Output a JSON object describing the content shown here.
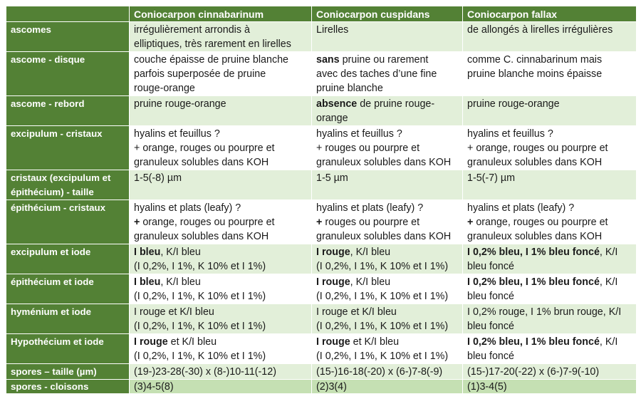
{
  "header": {
    "species": [
      "Coniocarpon cinnabarinum",
      "Coniocarpon cuspidans",
      "Coniocarpon fallax"
    ]
  },
  "rows": [
    {
      "label": "ascomes",
      "cells": [
        [
          "irrégulièrement arrondis à",
          "elliptiques, très rarement en lirelles"
        ],
        [
          "Lirelles"
        ],
        [
          "de allongés à lirelles irrégulières"
        ]
      ]
    },
    {
      "label": "ascome - disque",
      "cells": [
        [
          "couche épaisse de pruine blanche",
          "parfois superposée de pruine",
          "rouge-orange"
        ],
        [
          {
            "bold": "sans",
            "rest": " pruine ou rarement"
          },
          "avec des taches d’une fine",
          "pruine blanche"
        ],
        [
          "comme C. cinnabarinum mais",
          "pruine blanche moins épaisse"
        ]
      ]
    },
    {
      "label": "ascome - rebord",
      "cells": [
        [
          "pruine rouge-orange"
        ],
        [
          {
            "bold": "absence",
            "rest": " de pruine rouge-"
          },
          "orange"
        ],
        [
          "pruine rouge-orange"
        ]
      ]
    },
    {
      "label": "excipulum - cristaux",
      "cells": [
        [
          "hyalins et feuillus ?",
          "+ orange, rouges ou pourpre et",
          "granuleux solubles dans KOH"
        ],
        [
          "hyalins et feuillus ?",
          "+ rouges ou pourpre et",
          "granuleux solubles dans KOH"
        ],
        [
          "hyalins et feuillus ?",
          "+ orange, rouges ou pourpre et",
          "granuleux solubles dans KOH"
        ]
      ]
    },
    {
      "label": "cristaux (excipulum et épithécium) - taille",
      "cells": [
        [
          "1-5(-8) µm"
        ],
        [
          "1-5 µm"
        ],
        [
          "1-5(-7) µm"
        ]
      ]
    },
    {
      "label": "épithécium - cristaux",
      "cells": [
        [
          "hyalins et plats (leafy)  ?",
          {
            "bold": "+",
            "rest": " orange, rouges ou pourpre et"
          },
          "granuleux solubles dans KOH"
        ],
        [
          "hyalins et plats (leafy)  ?",
          {
            "bold": "+",
            "rest": " rouges ou pourpre et"
          },
          "granuleux solubles dans KOH"
        ],
        [
          "hyalins et plats (leafy) ?",
          {
            "bold": "+",
            "rest": " orange, rouges ou pourpre et"
          },
          "granuleux solubles dans KOH"
        ]
      ]
    },
    {
      "label": "excipulum et iode",
      "cells": [
        [
          {
            "bold": "I bleu",
            "rest": ", K/I bleu"
          },
          "(I 0,2%, I 1%, K 10% et I 1%)"
        ],
        [
          {
            "bold": "I rouge",
            "rest": ", K/I bleu"
          },
          "(I 0,2%, I 1%, K 10% et I 1%)"
        ],
        [
          {
            "bold": "I 0,2% bleu, I 1% bleu foncé",
            "rest": ", K/I"
          },
          "bleu foncé"
        ]
      ]
    },
    {
      "label": "épithécium et iode",
      "cells": [
        [
          {
            "bold": "I bleu",
            "rest": ", K/I bleu"
          },
          "(I 0,2%, I 1%, K 10% et I 1%)"
        ],
        [
          {
            "bold": "I rouge",
            "rest": ", K/I bleu"
          },
          "(I 0,2%, I 1%, K 10% et I 1%)"
        ],
        [
          {
            "bold": "I 0,2% bleu, I 1% bleu foncé",
            "rest": ", K/I"
          },
          "bleu foncé"
        ]
      ]
    },
    {
      "label": "hyménium et iode",
      "cells": [
        [
          "I rouge et K/I bleu",
          "(I 0,2%, I 1%, K 10% et I 1%)"
        ],
        [
          "I rouge et K/I bleu",
          "(I 0,2%, I 1%, K 10% et I 1%)"
        ],
        [
          "I 0,2% rouge, I 1% brun rouge, K/I",
          "bleu foncé"
        ]
      ]
    },
    {
      "label": "Hypothécium et iode",
      "cells": [
        [
          {
            "bold": "I rouge",
            "rest": " et K/I bleu"
          },
          "(I 0,2%, I 1%, K 10% et I 1%)"
        ],
        [
          {
            "bold": "I rouge",
            "rest": " et K/I bleu"
          },
          "(I 0,2%, I 1%, K 10% et I 1%)"
        ],
        [
          {
            "bold": "I 0,2% bleu, I 1% bleu foncé",
            "rest": ", K/I"
          },
          "bleu foncé"
        ]
      ]
    },
    {
      "label": "spores – taille (µm)",
      "cells": [
        [
          "(19-)23-28(-30) x (8-)10-11(-12)"
        ],
        [
          "(15-)16-18(-20) x (6-)7-8(-9)"
        ],
        [
          "(15-)17-20(-22) x (6-)7-9(-10)"
        ]
      ]
    },
    {
      "label": "spores - cloisons",
      "cells": [
        [
          "(3)4-5(8)"
        ],
        [
          "(2)3(4)"
        ],
        [
          "(1)3-4(5)"
        ]
      ]
    }
  ]
}
